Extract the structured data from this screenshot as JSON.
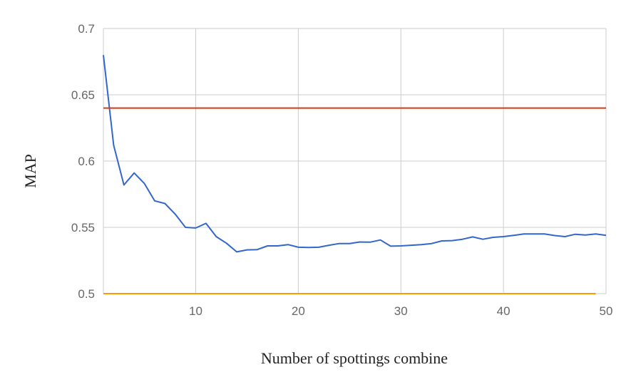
{
  "chart_data": {
    "type": "line",
    "title": "",
    "xlabel": "Number of spottings combine",
    "ylabel": "MAP",
    "xlim": [
      1,
      50
    ],
    "ylim": [
      0.5,
      0.7
    ],
    "x_ticks": [
      10,
      20,
      30,
      40,
      50
    ],
    "y_ticks": [
      0.5,
      0.55,
      0.6,
      0.65,
      0.7
    ],
    "y_tick_labels": [
      "0.5",
      "0.55",
      "0.6",
      "0.65",
      "0.7"
    ],
    "grid": true,
    "series": [
      {
        "color": "#3366cc",
        "x": [
          1,
          2,
          3,
          4,
          5,
          6,
          7,
          8,
          9,
          10,
          11,
          12,
          13,
          14,
          15,
          16,
          17,
          18,
          19,
          20,
          21,
          22,
          23,
          24,
          25,
          26,
          27,
          28,
          29,
          30,
          31,
          32,
          33,
          34,
          35,
          36,
          37,
          38,
          39,
          40,
          41,
          42,
          43,
          44,
          45,
          46,
          47,
          48,
          49,
          50
        ],
        "values": [
          0.68,
          0.612,
          0.582,
          0.591,
          0.583,
          0.57,
          0.568,
          0.56,
          0.55,
          0.5495,
          0.553,
          0.543,
          0.538,
          0.5315,
          0.533,
          0.5332,
          0.536,
          0.536,
          0.537,
          0.535,
          0.5348,
          0.535,
          0.5365,
          0.5378,
          0.5378,
          0.539,
          0.5388,
          0.5405,
          0.5358,
          0.536,
          0.5365,
          0.537,
          0.5378,
          0.5398,
          0.54,
          0.541,
          0.5428,
          0.541,
          0.5425,
          0.543,
          0.544,
          0.545,
          0.545,
          0.545,
          0.5438,
          0.543,
          0.5448,
          0.5442,
          0.545,
          0.544
        ]
      },
      {
        "color": "#dc3912",
        "x": [
          1,
          50
        ],
        "values": [
          0.64,
          0.64
        ]
      },
      {
        "color": "#ff9900",
        "x": [
          1,
          49
        ],
        "values": [
          0.5,
          0.5
        ]
      }
    ]
  }
}
